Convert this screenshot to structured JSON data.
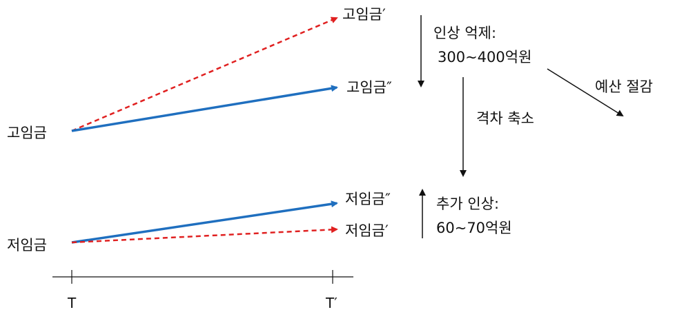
{
  "labels": {
    "high_wage_start": "고임금",
    "low_wage_start": "저임금",
    "high_wage_prime": "고임금′",
    "high_wage_double_prime": "고임금″",
    "low_wage_double_prime": "저임금″",
    "low_wage_prime": "저임금′",
    "time_start": "T",
    "time_end": "T′"
  },
  "annotations": {
    "raise_suppression_title": "인상 억제:",
    "raise_suppression_amount": "300~400억원",
    "budget_saving": "예산 절감",
    "gap_reduction": "격차 축소",
    "additional_raise_title": "추가 인상:",
    "additional_raise_amount": "60~70억원"
  },
  "colors": {
    "adjusted_path": "#1f6fbf",
    "baseline_path": "#e02020",
    "ink": "#111111"
  }
}
